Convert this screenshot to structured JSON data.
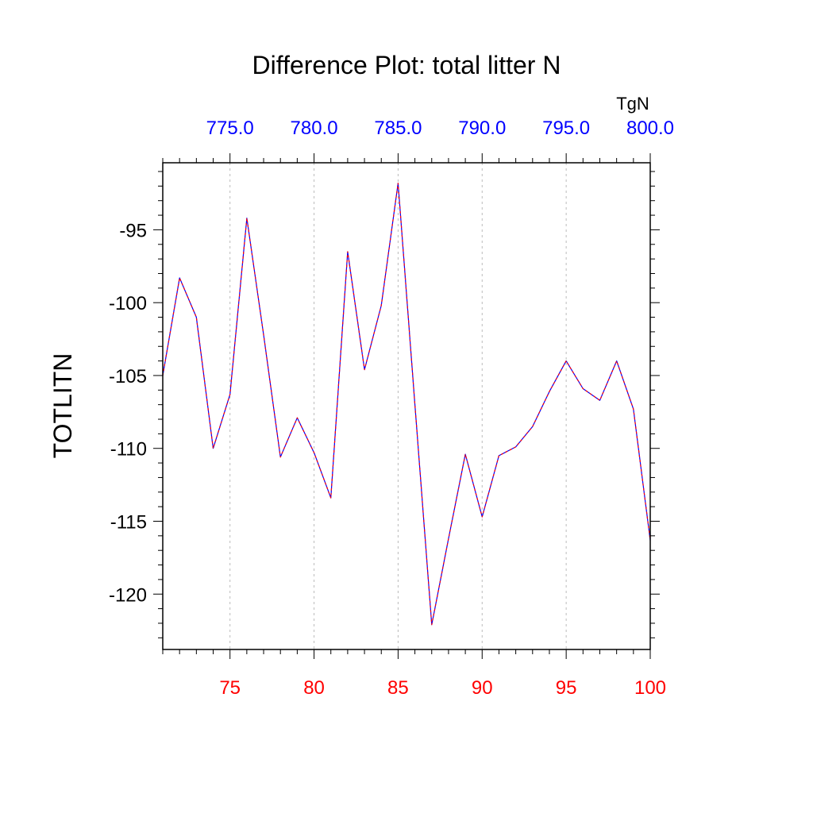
{
  "chart_data": {
    "type": "line",
    "title": "Difference Plot: total litter N",
    "ylabel": "TOTLITN",
    "top_axis_units": "TgN",
    "xlim": [
      71,
      100
    ],
    "ylim": [
      -123.8,
      -90.4
    ],
    "x_ticks_bottom": [
      75,
      80,
      85,
      90,
      95,
      100
    ],
    "x_tick_labels_bottom": [
      "75",
      "80",
      "85",
      "90",
      "95",
      "100"
    ],
    "x_tick_color_bottom": "#ff0000",
    "x_ticks_top": [
      75,
      80,
      85,
      90,
      95,
      100
    ],
    "x_tick_labels_top": [
      "775.0",
      "780.0",
      "785.0",
      "790.0",
      "795.0",
      "800.0"
    ],
    "x_tick_color_top": "#0000ff",
    "y_ticks": [
      -95,
      -100,
      -105,
      -110,
      -115,
      -120
    ],
    "y_tick_labels": [
      "-95",
      "-100",
      "-105",
      "-110",
      "-115",
      "-120"
    ],
    "grid": "vertical dashed at major x ticks",
    "series": [
      {
        "line_color": "#0000ff",
        "overlay_dash_color": "#ff0000",
        "x": [
          71,
          72,
          73,
          74,
          75,
          76,
          77,
          78,
          79,
          80,
          81,
          82,
          83,
          84,
          85,
          86,
          87,
          88,
          89,
          90,
          91,
          92,
          93,
          94,
          95,
          96,
          97,
          98,
          99,
          100
        ],
        "values": [
          -105.0,
          -98.3,
          -101.0,
          -110.0,
          -106.3,
          -94.2,
          -102.2,
          -110.6,
          -107.9,
          -110.3,
          -113.4,
          -96.5,
          -104.6,
          -100.2,
          -91.8,
          -107.0,
          -122.1,
          -116.2,
          -110.4,
          -114.7,
          -110.5,
          -109.9,
          -108.5,
          -106.1,
          -104.0,
          -105.9,
          -106.7,
          -104.0,
          -107.3,
          -116.3
        ]
      }
    ]
  }
}
